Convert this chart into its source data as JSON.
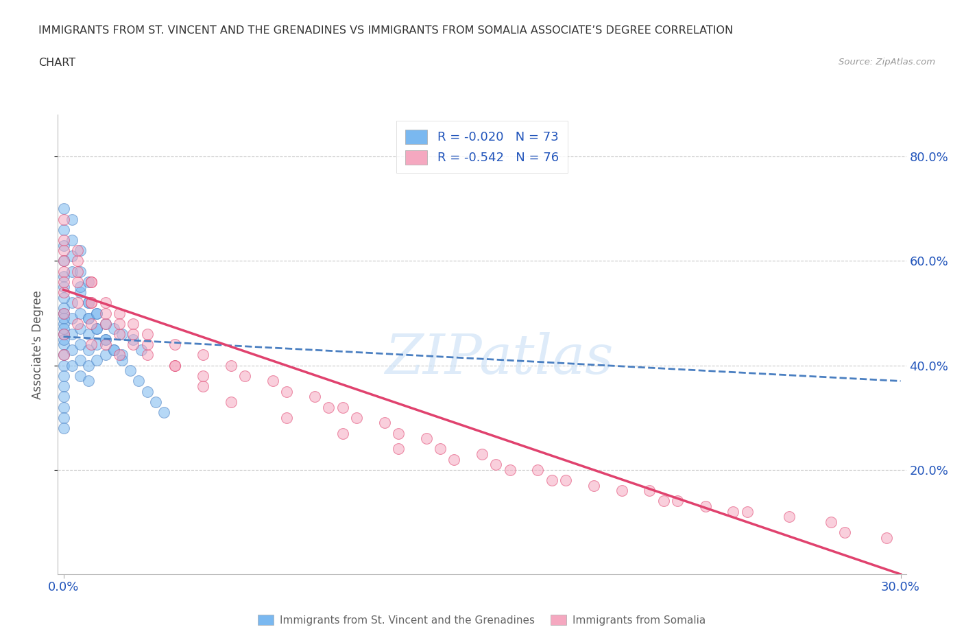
{
  "title_line1": "IMMIGRANTS FROM ST. VINCENT AND THE GRENADINES VS IMMIGRANTS FROM SOMALIA ASSOCIATE’S DEGREE CORRELATION",
  "title_line2": "CHART",
  "source_text": "Source: ZipAtlas.com",
  "ylabel": "Associate's Degree",
  "x_tick_labels": [
    "0.0%",
    "30.0%"
  ],
  "y_tick_positions": [
    0.2,
    0.4,
    0.6,
    0.8
  ],
  "x_lim": [
    -0.002,
    0.302
  ],
  "y_lim": [
    0.0,
    0.88
  ],
  "color_blue": "#7ab8f0",
  "color_pink": "#f5a8c0",
  "trendline_blue": "#4a7fc1",
  "trendline_pink": "#e0426e",
  "watermark": "ZIPatlas",
  "background_color": "#ffffff",
  "legend_text_color": "#2255bb",
  "grid_color": "#c8c8c8",
  "blue_x": [
    0.0,
    0.0,
    0.0,
    0.0,
    0.0,
    0.0,
    0.0,
    0.0,
    0.0,
    0.0,
    0.0,
    0.0,
    0.003,
    0.003,
    0.003,
    0.003,
    0.003,
    0.006,
    0.006,
    0.006,
    0.006,
    0.006,
    0.006,
    0.009,
    0.009,
    0.009,
    0.009,
    0.009,
    0.009,
    0.012,
    0.012,
    0.012,
    0.012,
    0.015,
    0.015,
    0.015,
    0.018,
    0.018,
    0.021,
    0.021,
    0.025,
    0.028,
    0.0,
    0.0,
    0.0,
    0.0,
    0.0,
    0.0,
    0.0,
    0.0,
    0.0,
    0.0,
    0.0,
    0.003,
    0.003,
    0.003,
    0.003,
    0.006,
    0.006,
    0.006,
    0.009,
    0.009,
    0.009,
    0.012,
    0.012,
    0.015,
    0.018,
    0.021,
    0.024,
    0.027,
    0.03,
    0.033,
    0.036
  ],
  "blue_y": [
    0.5,
    0.48,
    0.46,
    0.44,
    0.42,
    0.4,
    0.38,
    0.36,
    0.34,
    0.32,
    0.3,
    0.28,
    0.52,
    0.49,
    0.46,
    0.43,
    0.4,
    0.54,
    0.5,
    0.47,
    0.44,
    0.41,
    0.38,
    0.52,
    0.49,
    0.46,
    0.43,
    0.4,
    0.37,
    0.5,
    0.47,
    0.44,
    0.41,
    0.48,
    0.45,
    0.42,
    0.47,
    0.43,
    0.46,
    0.42,
    0.45,
    0.43,
    0.7,
    0.66,
    0.63,
    0.6,
    0.57,
    0.55,
    0.53,
    0.51,
    0.49,
    0.47,
    0.45,
    0.68,
    0.64,
    0.61,
    0.58,
    0.62,
    0.58,
    0.55,
    0.56,
    0.52,
    0.49,
    0.5,
    0.47,
    0.45,
    0.43,
    0.41,
    0.39,
    0.37,
    0.35,
    0.33,
    0.31
  ],
  "pink_x": [
    0.0,
    0.0,
    0.0,
    0.0,
    0.0,
    0.0,
    0.005,
    0.005,
    0.005,
    0.005,
    0.01,
    0.01,
    0.01,
    0.01,
    0.015,
    0.015,
    0.015,
    0.02,
    0.02,
    0.02,
    0.025,
    0.025,
    0.03,
    0.03,
    0.04,
    0.04,
    0.05,
    0.05,
    0.06,
    0.065,
    0.075,
    0.08,
    0.09,
    0.095,
    0.1,
    0.105,
    0.115,
    0.12,
    0.13,
    0.135,
    0.15,
    0.155,
    0.17,
    0.175,
    0.19,
    0.21,
    0.215,
    0.23,
    0.245,
    0.26,
    0.275,
    0.28,
    0.295,
    0.0,
    0.0,
    0.0,
    0.0,
    0.005,
    0.005,
    0.01,
    0.01,
    0.015,
    0.02,
    0.025,
    0.03,
    0.04,
    0.05,
    0.06,
    0.08,
    0.1,
    0.12,
    0.14,
    0.16,
    0.18,
    0.2,
    0.22,
    0.24
  ],
  "pink_y": [
    0.62,
    0.58,
    0.54,
    0.5,
    0.46,
    0.42,
    0.6,
    0.56,
    0.52,
    0.48,
    0.56,
    0.52,
    0.48,
    0.44,
    0.52,
    0.48,
    0.44,
    0.5,
    0.46,
    0.42,
    0.48,
    0.44,
    0.46,
    0.42,
    0.44,
    0.4,
    0.42,
    0.38,
    0.4,
    0.38,
    0.37,
    0.35,
    0.34,
    0.32,
    0.32,
    0.3,
    0.29,
    0.27,
    0.26,
    0.24,
    0.23,
    0.21,
    0.2,
    0.18,
    0.17,
    0.16,
    0.14,
    0.13,
    0.12,
    0.11,
    0.1,
    0.08,
    0.07,
    0.68,
    0.64,
    0.6,
    0.56,
    0.62,
    0.58,
    0.56,
    0.52,
    0.5,
    0.48,
    0.46,
    0.44,
    0.4,
    0.36,
    0.33,
    0.3,
    0.27,
    0.24,
    0.22,
    0.2,
    0.18,
    0.16,
    0.14,
    0.12
  ],
  "blue_trend_x": [
    0.0,
    0.3
  ],
  "blue_trend_y": [
    0.455,
    0.37
  ],
  "pink_trend_x": [
    0.0,
    0.3
  ],
  "pink_trend_y": [
    0.545,
    0.0
  ]
}
